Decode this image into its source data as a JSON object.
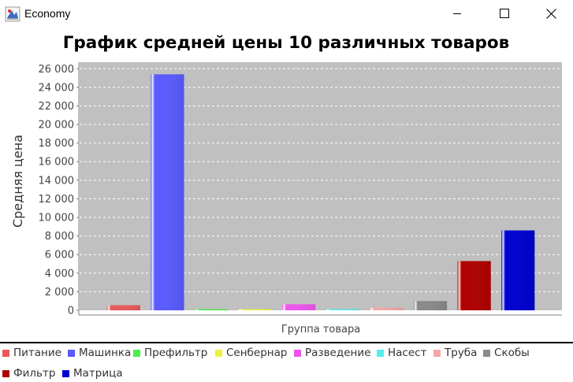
{
  "window": {
    "title": "Economy"
  },
  "chart_data": {
    "type": "bar",
    "title": "График средней цены 10 различных товаров",
    "xlabel": "Группа товара",
    "ylabel": "Средняя цена",
    "ylim": [
      0,
      26700
    ],
    "yticks": [
      0,
      2000,
      4000,
      6000,
      8000,
      10000,
      12000,
      14000,
      16000,
      18000,
      20000,
      22000,
      24000,
      26000
    ],
    "ytick_labels": [
      "0",
      "2 000",
      "4 000",
      "6 000",
      "8 000",
      "10 000",
      "12 000",
      "14 000",
      "16 000",
      "18 000",
      "20 000",
      "22 000",
      "24 000",
      "26 000"
    ],
    "grid": true,
    "legend_position": "bottom",
    "series": [
      {
        "name": "Питание",
        "value": 550,
        "color": "#e85a5a"
      },
      {
        "name": "Машинка",
        "value": 25400,
        "color": "#5a5aff"
      },
      {
        "name": "Префильтр",
        "value": 120,
        "color": "#4ded4d"
      },
      {
        "name": "Сенбернар",
        "value": 110,
        "color": "#f0f040"
      },
      {
        "name": "Разведение",
        "value": 650,
        "color": "#ee55ee"
      },
      {
        "name": "Насест",
        "value": 120,
        "color": "#55eeee"
      },
      {
        "name": "Труба",
        "value": 280,
        "color": "#f4a8a8"
      },
      {
        "name": "Скобы",
        "value": 1000,
        "color": "#8a8a8a"
      },
      {
        "name": "Фильтр",
        "value": 5300,
        "color": "#b00000"
      },
      {
        "name": "Матрица",
        "value": 8600,
        "color": "#0000d0"
      }
    ]
  }
}
